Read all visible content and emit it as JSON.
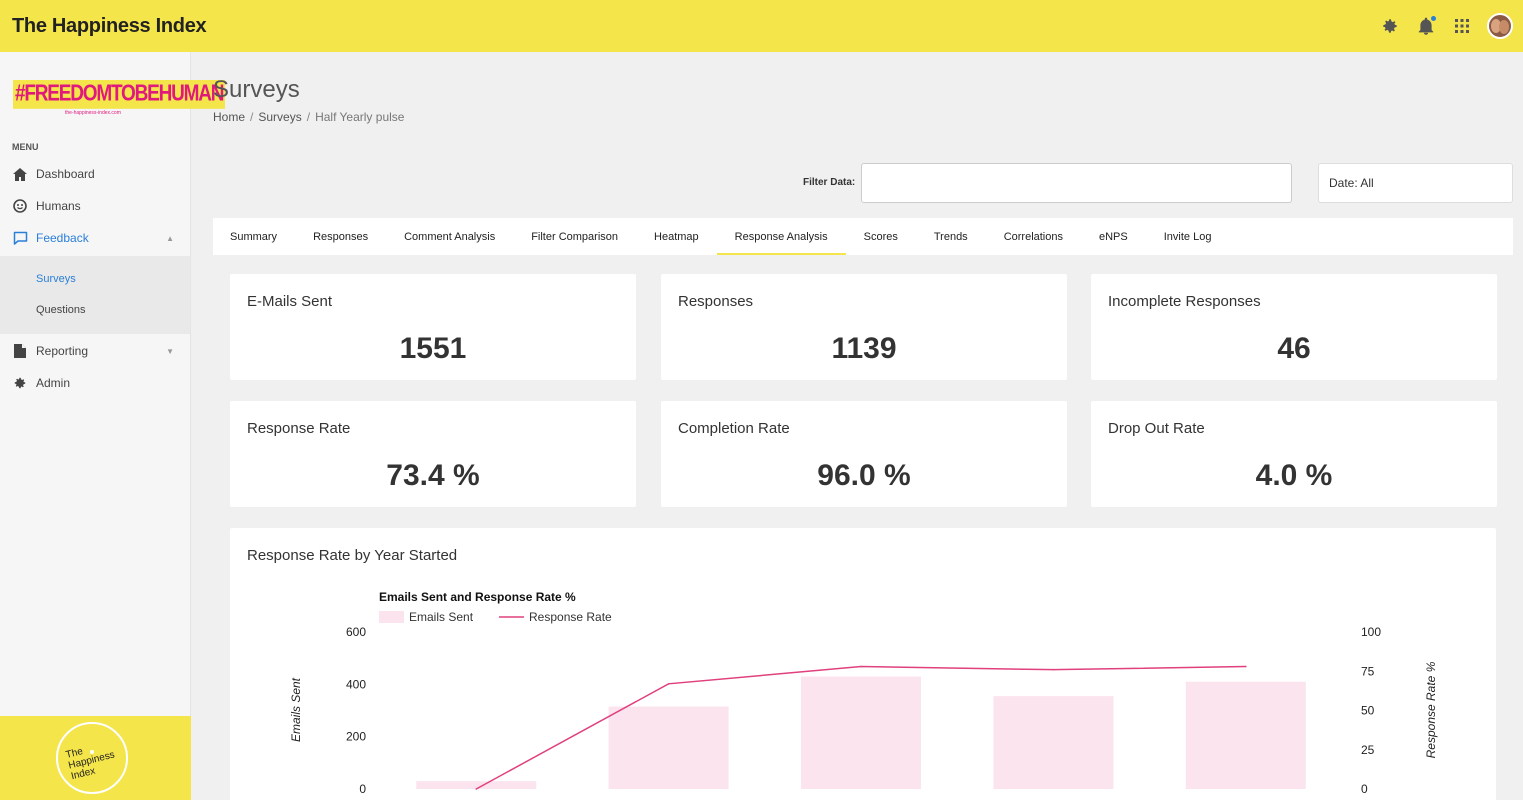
{
  "app": {
    "title": "The Happiness Index"
  },
  "sidebar": {
    "brand": {
      "main": "#FREEDOMTOBEHUMAN",
      "sub": "the-happiness-index.com"
    },
    "menu_heading": "MENU",
    "items": [
      {
        "label": "Dashboard",
        "icon": "home-icon"
      },
      {
        "label": "Humans",
        "icon": "smiley-icon"
      },
      {
        "label": "Feedback",
        "icon": "chat-icon"
      },
      {
        "label": "Reporting",
        "icon": "document-icon"
      },
      {
        "label": "Admin",
        "icon": "gear-icon"
      }
    ],
    "submenu": [
      {
        "label": "Surveys"
      },
      {
        "label": "Questions"
      }
    ],
    "footer_logo": {
      "line1": "The",
      "line2": "Happiness",
      "line3": "Index"
    }
  },
  "page": {
    "title": "Surveys",
    "breadcrumb": [
      "Home",
      "Surveys",
      "Half Yearly pulse"
    ]
  },
  "filter": {
    "label": "Filter Data:",
    "value": "",
    "date_label": "Date: All"
  },
  "tabs": [
    "Summary",
    "Responses",
    "Comment Analysis",
    "Filter Comparison",
    "Heatmap",
    "Response Analysis",
    "Scores",
    "Trends",
    "Correlations",
    "eNPS",
    "Invite Log"
  ],
  "active_tab": "Response Analysis",
  "stats": [
    {
      "label": "E-Mails Sent",
      "value": "1551"
    },
    {
      "label": "Responses",
      "value": "1139"
    },
    {
      "label": "Incomplete Responses",
      "value": "46"
    },
    {
      "label": "Response Rate",
      "value": "73.4 %"
    },
    {
      "label": "Completion Rate",
      "value": "96.0 %"
    },
    {
      "label": "Drop Out Rate",
      "value": "4.0 %"
    }
  ],
  "chart_card": {
    "title": "Response Rate by Year Started"
  },
  "colors": {
    "accent": "#f4e54a",
    "link": "#2a7fd8",
    "bar": "#fce4ef",
    "line": "#e0407d"
  },
  "chart_data": {
    "type": "bar",
    "title": "Emails Sent and Response Rate %",
    "legend": [
      "Emails Sent",
      "Response Rate"
    ],
    "categories": [
      "",
      "",
      "",
      "",
      ""
    ],
    "series": [
      {
        "name": "Emails Sent",
        "axis": "left",
        "values": [
          30,
          315,
          430,
          355,
          410
        ]
      },
      {
        "name": "Response Rate",
        "axis": "right",
        "type": "line",
        "values": [
          0,
          67,
          78,
          76,
          78
        ]
      }
    ],
    "ylabel": "Emails Sent",
    "y2label": "Response Rate %",
    "ylim": [
      0,
      600
    ],
    "y2lim": [
      0,
      100
    ],
    "yticks": [
      "0",
      "200",
      "400",
      "600"
    ],
    "y2ticks": [
      "0",
      "25",
      "50",
      "75",
      "100"
    ]
  }
}
